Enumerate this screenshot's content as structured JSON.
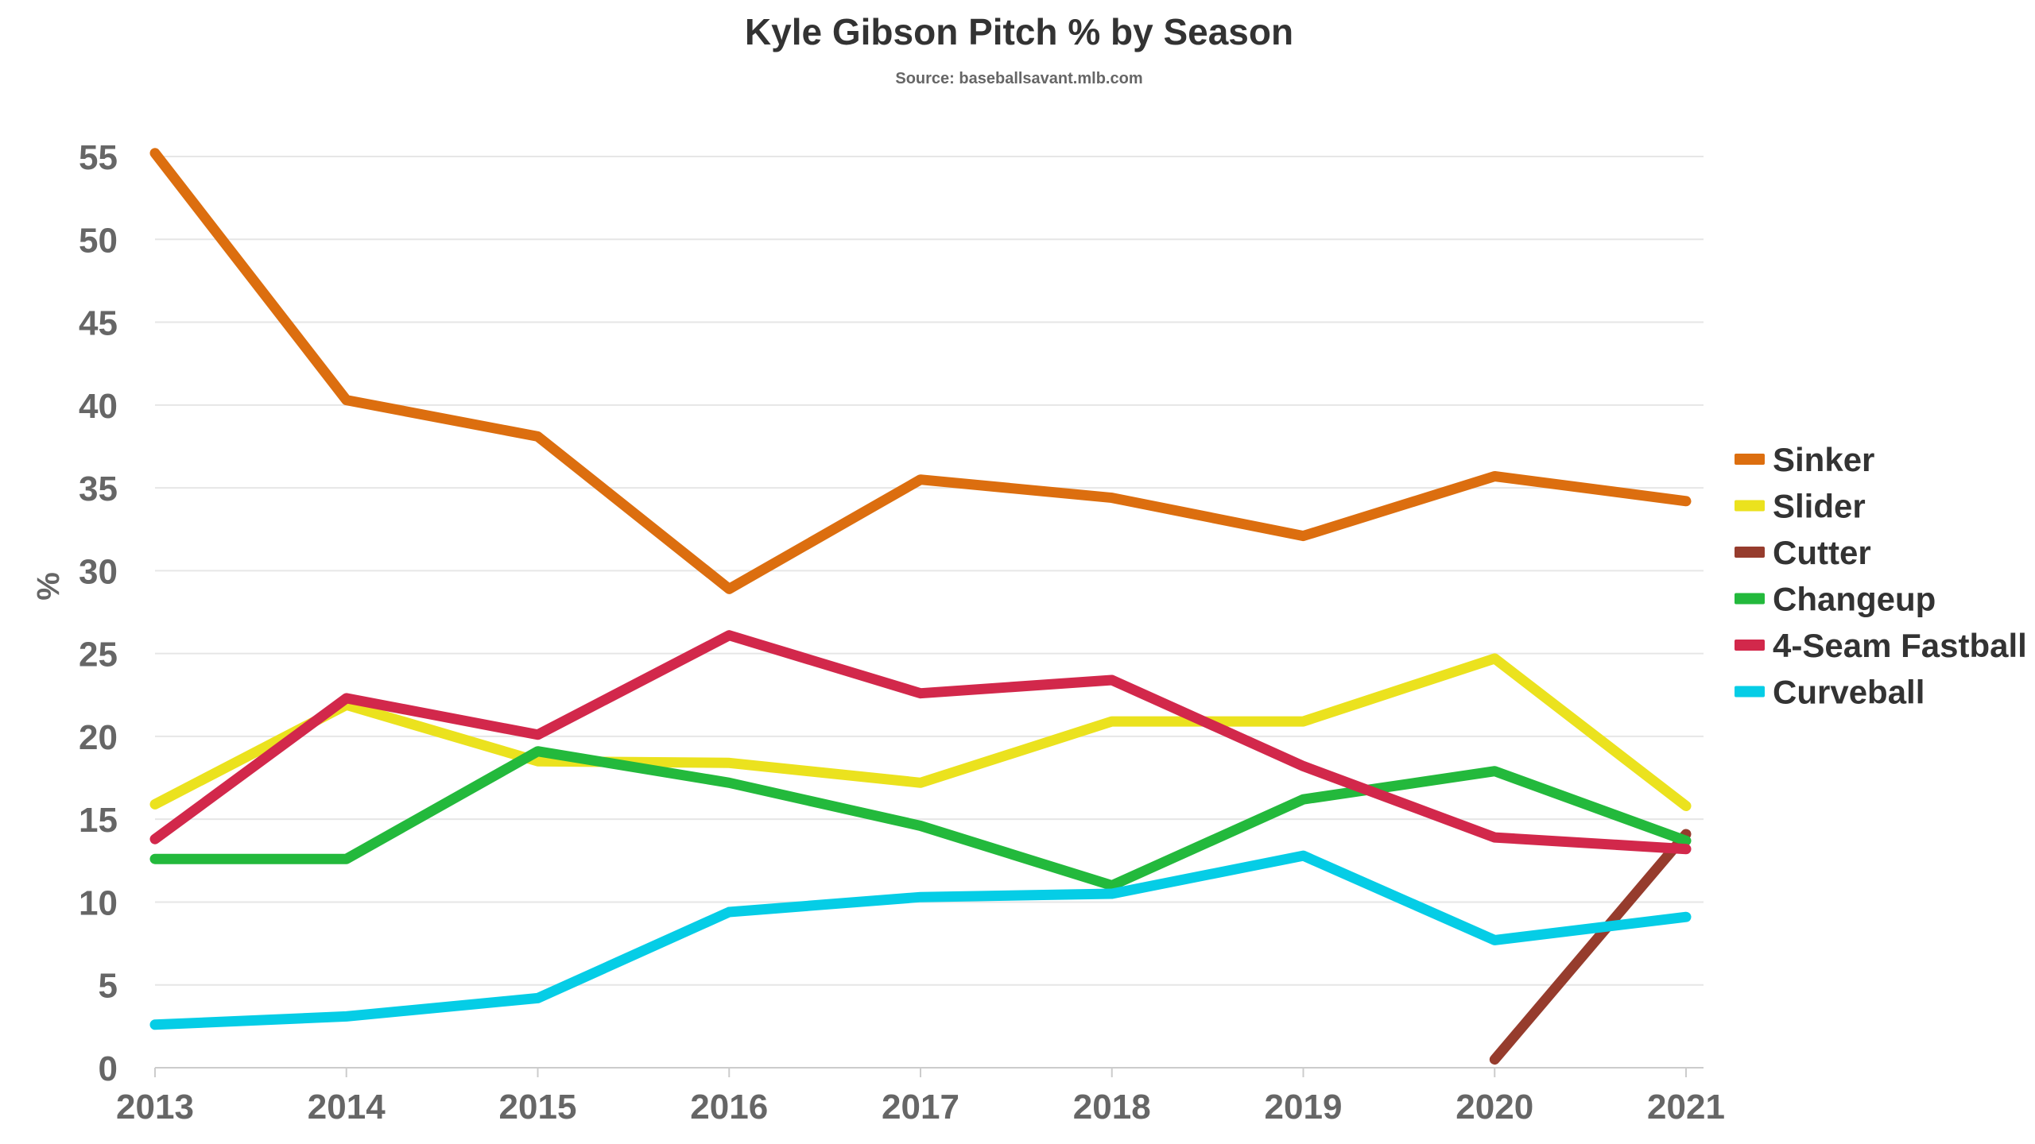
{
  "chart_data": {
    "type": "line",
    "title": "Kyle Gibson Pitch % by Season",
    "subtitle": "Source: baseballsavant.mlb.com",
    "xlabel": "",
    "ylabel": "%",
    "x": [
      2013,
      2014,
      2015,
      2016,
      2017,
      2018,
      2019,
      2020,
      2021
    ],
    "ylim": [
      0,
      55
    ],
    "yticks": [
      0,
      5,
      10,
      15,
      20,
      25,
      30,
      35,
      40,
      45,
      50,
      55
    ],
    "grid": true,
    "legend_position": "right",
    "series": [
      {
        "name": "Sinker",
        "color": "#dc6e0f",
        "values": [
          55.2,
          40.3,
          38.1,
          28.9,
          35.5,
          34.4,
          32.1,
          35.7,
          34.2
        ]
      },
      {
        "name": "Slider",
        "color": "#ebe21e",
        "values": [
          15.9,
          21.9,
          18.5,
          18.4,
          17.2,
          20.9,
          20.9,
          24.7,
          15.8
        ]
      },
      {
        "name": "Cutter",
        "color": "#963c2d",
        "values": [
          null,
          null,
          null,
          null,
          null,
          null,
          null,
          0.5,
          14.1
        ]
      },
      {
        "name": "Changeup",
        "color": "#23b93c",
        "values": [
          12.6,
          12.6,
          19.1,
          17.2,
          14.6,
          11.0,
          16.2,
          17.9,
          13.7
        ]
      },
      {
        "name": "4-Seam Fastball",
        "color": "#d2284b",
        "values": [
          13.8,
          22.3,
          20.1,
          26.1,
          22.6,
          23.4,
          18.2,
          13.9,
          13.2
        ]
      },
      {
        "name": "Curveball",
        "color": "#05cde6",
        "values": [
          2.6,
          3.1,
          4.2,
          9.4,
          10.3,
          10.5,
          12.8,
          7.7,
          9.1
        ]
      }
    ]
  }
}
